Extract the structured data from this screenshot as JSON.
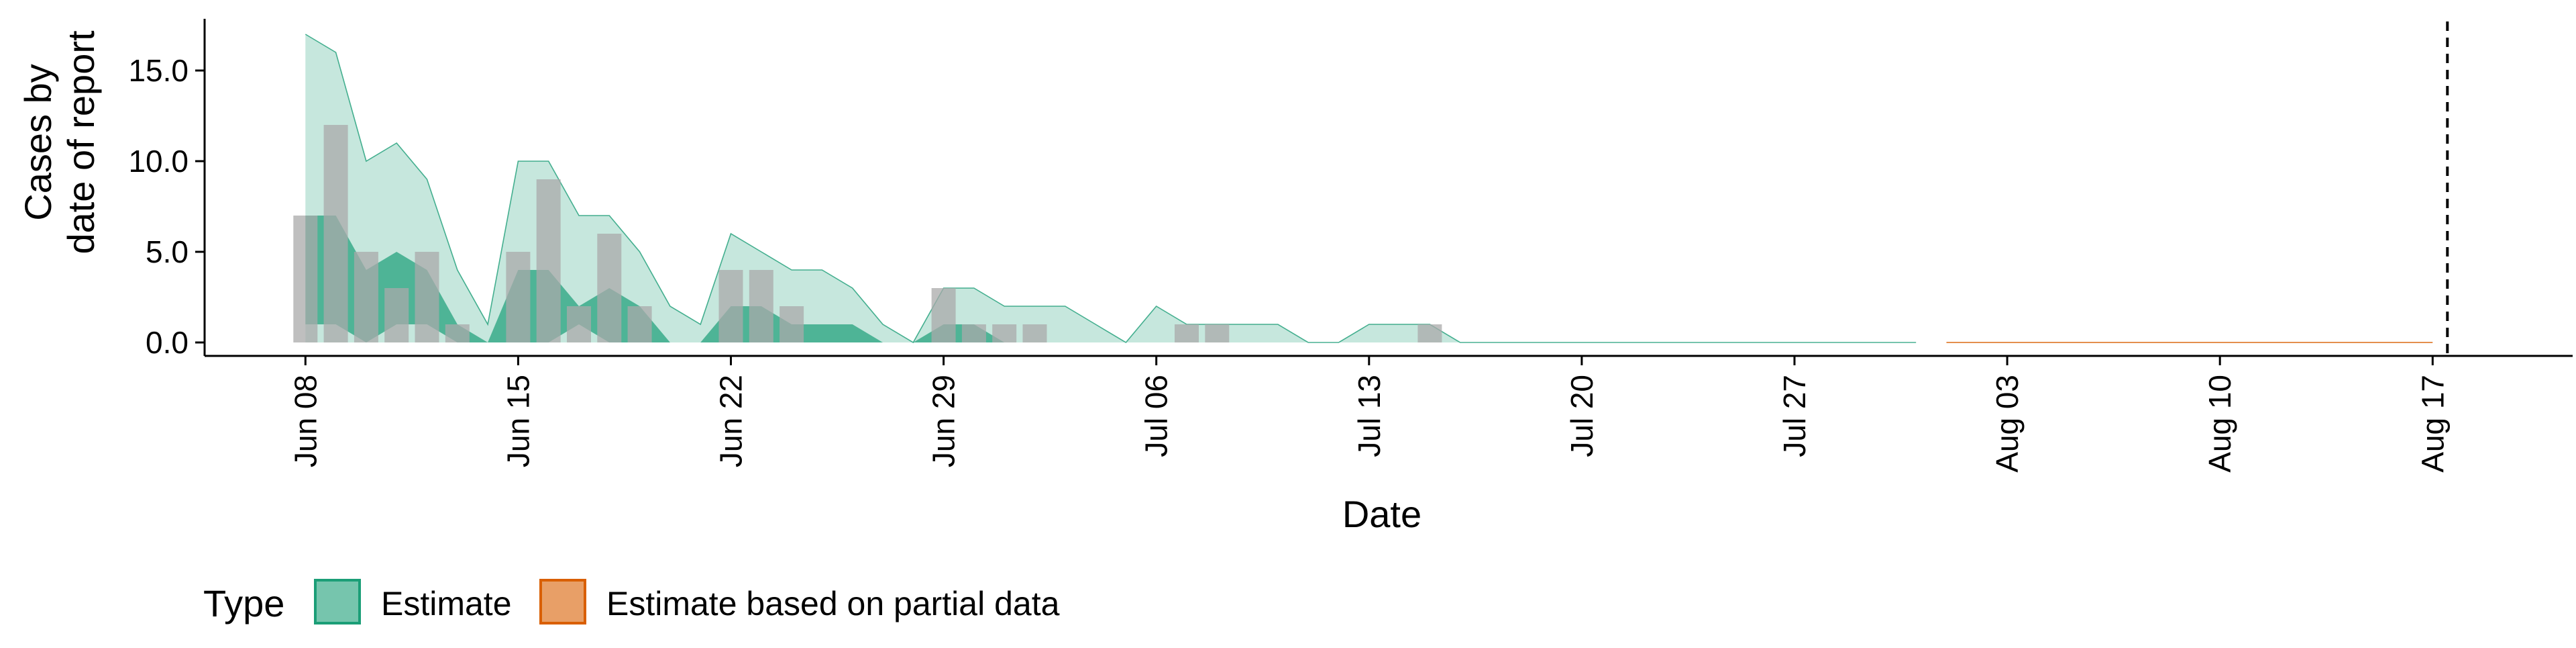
{
  "chart_data": {
    "type": "area",
    "xlabel": "Date",
    "ylabel_lines": [
      "Cases by",
      "date of report"
    ],
    "ylim": [
      0,
      18
    ],
    "yticks": [
      {
        "value": 0,
        "label": "0.0"
      },
      {
        "value": 5,
        "label": "5.0"
      },
      {
        "value": 10,
        "label": "10.0"
      },
      {
        "value": 15,
        "label": "15.0"
      }
    ],
    "xticks": [
      "Jun 08",
      "Jun 15",
      "Jun 22",
      "Jun 29",
      "Jul 06",
      "Jul 13",
      "Jul 20",
      "Jul 27",
      "Aug 03",
      "Aug 10",
      "Aug 17"
    ],
    "x_start": "Jun 07",
    "x_end": "Aug 22",
    "forecast_date": "Aug 17",
    "colors": {
      "estimate": "#1b9e77",
      "partial": "#d95f02",
      "observed": "#aaaaaa"
    },
    "legend": {
      "title": "Type",
      "position": "bottom-left",
      "items": [
        {
          "key": "estimate",
          "label": "Estimate"
        },
        {
          "key": "partial",
          "label": "Estimate based on partial data"
        }
      ]
    },
    "observed_cases": [
      {
        "date": "Jun 08",
        "value": 7
      },
      {
        "date": "Jun 09",
        "value": 12
      },
      {
        "date": "Jun 10",
        "value": 5
      },
      {
        "date": "Jun 11",
        "value": 3
      },
      {
        "date": "Jun 12",
        "value": 5
      },
      {
        "date": "Jun 13",
        "value": 1
      },
      {
        "date": "Jun 15",
        "value": 5
      },
      {
        "date": "Jun 16",
        "value": 9
      },
      {
        "date": "Jun 17",
        "value": 2
      },
      {
        "date": "Jun 18",
        "value": 6
      },
      {
        "date": "Jun 19",
        "value": 2
      },
      {
        "date": "Jun 22",
        "value": 4
      },
      {
        "date": "Jun 23",
        "value": 4
      },
      {
        "date": "Jun 24",
        "value": 2
      },
      {
        "date": "Jun 29",
        "value": 3
      },
      {
        "date": "Jun 30",
        "value": 1
      },
      {
        "date": "Jul 01",
        "value": 1
      },
      {
        "date": "Jul 02",
        "value": 1
      },
      {
        "date": "Jul 07",
        "value": 1
      },
      {
        "date": "Jul 08",
        "value": 1
      },
      {
        "date": "Jul 15",
        "value": 1
      }
    ],
    "estimate_outer": {
      "dates": [
        "Jun 08",
        "Jun 09",
        "Jun 10",
        "Jun 11",
        "Jun 12",
        "Jun 13",
        "Jun 14",
        "Jun 15",
        "Jun 16",
        "Jun 17",
        "Jun 18",
        "Jun 19",
        "Jun 20",
        "Jun 21",
        "Jun 22",
        "Jun 23",
        "Jun 24",
        "Jun 25",
        "Jun 26",
        "Jun 27",
        "Jun 28",
        "Jun 29",
        "Jun 30",
        "Jul 01",
        "Jul 02",
        "Jul 03",
        "Jul 04",
        "Jul 05",
        "Jul 06",
        "Jul 07",
        "Jul 08",
        "Jul 09",
        "Jul 10",
        "Jul 11",
        "Jul 12",
        "Jul 13",
        "Jul 14",
        "Jul 15",
        "Jul 16",
        "Jul 17",
        "Jul 31"
      ],
      "upper": [
        17,
        16,
        10,
        11,
        9,
        4,
        1,
        10,
        10,
        7,
        7,
        5,
        2,
        1,
        6,
        5,
        4,
        4,
        3,
        1,
        0,
        3,
        3,
        2,
        2,
        2,
        1,
        0,
        2,
        1,
        1,
        1,
        1,
        0,
        0,
        1,
        1,
        1,
        0,
        0,
        0
      ],
      "lower": [
        0,
        0,
        0,
        0,
        0,
        0,
        0,
        0,
        0,
        0,
        0,
        0,
        0,
        0,
        0,
        0,
        0,
        0,
        0,
        0,
        0,
        0,
        0,
        0,
        0,
        0,
        0,
        0,
        0,
        0,
        0,
        0,
        0,
        0,
        0,
        0,
        0,
        0,
        0,
        0,
        0
      ]
    },
    "estimate_inner": {
      "dates": [
        "Jun 08",
        "Jun 09",
        "Jun 10",
        "Jun 11",
        "Jun 12",
        "Jun 13",
        "Jun 14",
        "Jun 15",
        "Jun 16",
        "Jun 17",
        "Jun 18",
        "Jun 19",
        "Jun 20",
        "Jun 21",
        "Jun 22",
        "Jun 23",
        "Jun 24",
        "Jun 25",
        "Jun 26",
        "Jun 27",
        "Jun 28",
        "Jun 29",
        "Jun 30",
        "Jul 01",
        "Jul 02"
      ],
      "upper": [
        7,
        7,
        4,
        5,
        4,
        1,
        0,
        4,
        4,
        2,
        3,
        2,
        0,
        0,
        2,
        2,
        1,
        1,
        1,
        0,
        0,
        1,
        1,
        0,
        0
      ],
      "lower": [
        1,
        1,
        0,
        1,
        1,
        0,
        0,
        0,
        0,
        1,
        0,
        0,
        0,
        0,
        0,
        0,
        0,
        0,
        0,
        0,
        0,
        0,
        0,
        0,
        0
      ]
    },
    "partial_estimate": {
      "dates": [
        "Aug 01",
        "Aug 17"
      ],
      "upper": [
        0,
        0
      ],
      "lower": [
        0,
        0
      ]
    }
  }
}
